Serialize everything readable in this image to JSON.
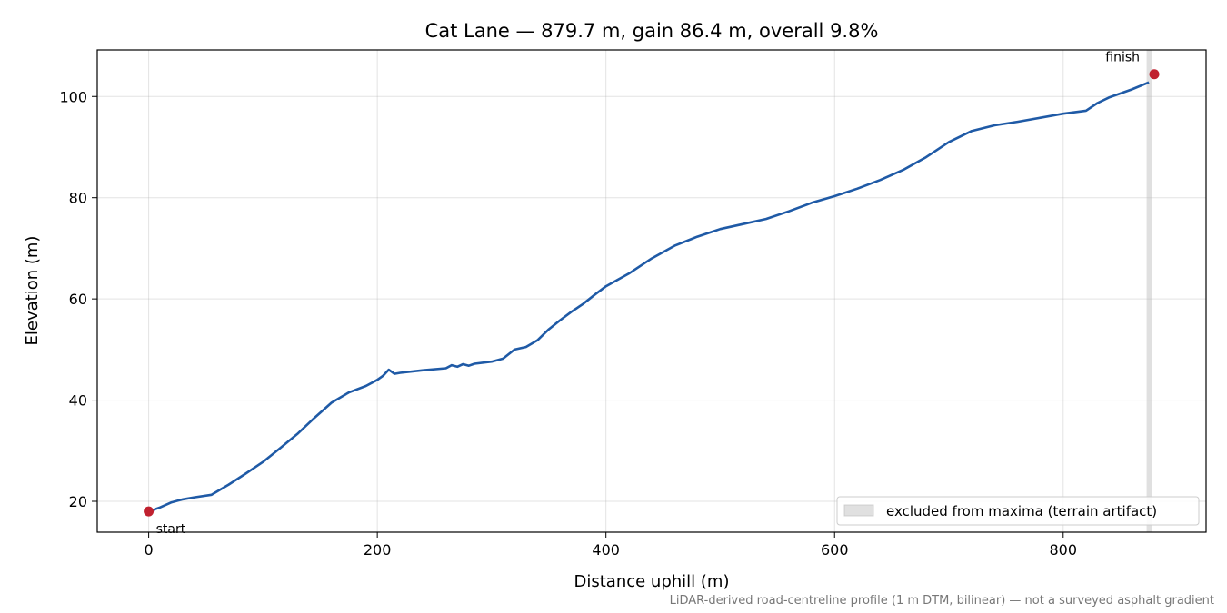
{
  "chart_data": {
    "type": "line",
    "title": "Cat Lane — 879.7 m, gain 86.4 m, overall 9.8%",
    "xlabel": "Distance uphill (m)",
    "ylabel": "Elevation (m)",
    "xlim": [
      -45,
      925
    ],
    "ylim": [
      13.9,
      109.2
    ],
    "xticks": [
      0,
      200,
      400,
      600,
      800
    ],
    "yticks": [
      20,
      40,
      60,
      80,
      100
    ],
    "grid": true,
    "line_color": "#1f5aa6",
    "marker_color": "#c0212f",
    "series": [
      {
        "x": [
          0,
          10,
          20,
          30,
          40,
          55,
          70,
          85,
          100,
          115,
          130,
          145,
          160,
          175,
          190,
          200,
          205,
          210,
          215,
          220,
          240,
          260,
          265,
          270,
          275,
          280,
          285,
          300,
          310,
          320,
          330,
          340,
          350,
          360,
          370,
          380,
          390,
          400,
          420,
          440,
          460,
          480,
          500,
          520,
          540,
          560,
          580,
          600,
          620,
          640,
          660,
          680,
          700,
          720,
          740,
          760,
          780,
          800,
          820,
          830,
          840,
          860,
          875
        ],
        "y": [
          18.0,
          18.8,
          19.8,
          20.4,
          20.8,
          21.3,
          23.3,
          25.5,
          27.8,
          30.5,
          33.3,
          36.5,
          39.5,
          41.5,
          42.8,
          44.0,
          44.8,
          46.0,
          45.2,
          45.4,
          45.9,
          46.3,
          46.9,
          46.6,
          47.1,
          46.8,
          47.2,
          47.6,
          48.2,
          50.0,
          50.5,
          51.8,
          54.0,
          55.8,
          57.5,
          59.0,
          60.8,
          62.5,
          65.0,
          68.0,
          70.5,
          72.3,
          73.8,
          74.8,
          75.8,
          77.3,
          79.0,
          80.3,
          81.8,
          83.5,
          85.5,
          88.0,
          91.0,
          93.2,
          94.3,
          95.0,
          95.8,
          96.6,
          97.2,
          98.7,
          99.8,
          101.4,
          102.8
        ]
      }
    ],
    "points": [
      {
        "x": 0,
        "y": 18.0,
        "label": "start"
      },
      {
        "x": 879.7,
        "y": 104.4,
        "label": "finish"
      }
    ],
    "excluded_band": {
      "x": [
        873,
        878
      ],
      "label": "excluded from maxima (terrain artifact)"
    },
    "legend_position": "lower-right",
    "footnote": "LiDAR-derived road-centreline profile (1 m DTM, bilinear) — not a surveyed asphalt gradient"
  }
}
